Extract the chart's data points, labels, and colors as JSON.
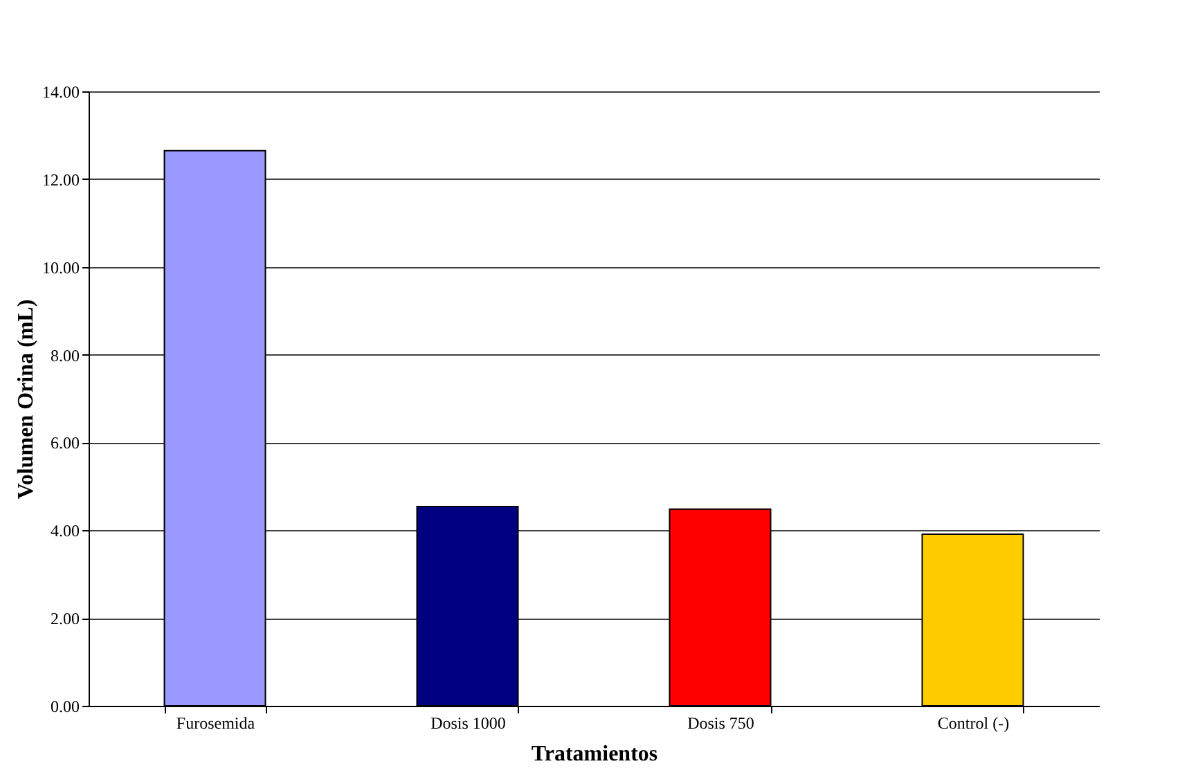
{
  "chart_data": {
    "type": "bar",
    "xlabel": "Tratamientos",
    "ylabel": "Volumen Orina (mL)",
    "categories": [
      "Furosemida",
      "Dosis 1000",
      "Dosis 750",
      "Control (-)"
    ],
    "values": [
      12.65,
      4.54,
      4.48,
      3.91
    ],
    "colors": [
      "#9999ff",
      "#000080",
      "#ff0000",
      "#ffcc00"
    ],
    "ylim": [
      0,
      14
    ],
    "yticks": [
      {
        "value": 0,
        "label": "0.00"
      },
      {
        "value": 2,
        "label": "2.00"
      },
      {
        "value": 4,
        "label": "4.00"
      },
      {
        "value": 6,
        "label": "6.00"
      },
      {
        "value": 8,
        "label": "8.00"
      },
      {
        "value": 10,
        "label": "10.00"
      },
      {
        "value": 12,
        "label": "12.00"
      },
      {
        "value": 14,
        "label": "14.00"
      }
    ],
    "grid": "y"
  }
}
